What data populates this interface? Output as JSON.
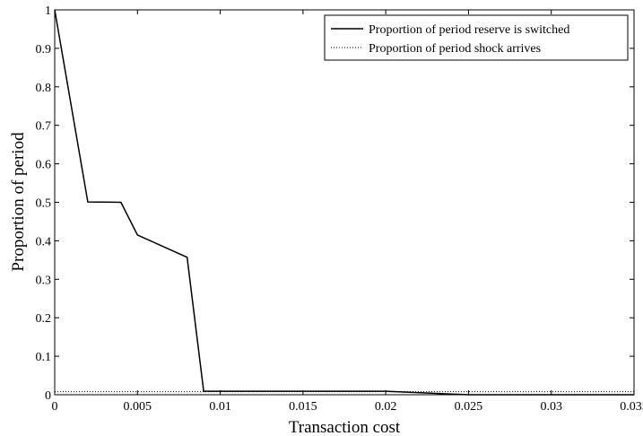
{
  "chart_data": {
    "type": "line",
    "title": "",
    "xlabel": "Transaction cost",
    "ylabel": "Proportion of period",
    "xlim": [
      0,
      0.035
    ],
    "ylim": [
      0,
      1
    ],
    "xticks": [
      0,
      0.005,
      0.01,
      0.015,
      0.02,
      0.025,
      0.03,
      0.035
    ],
    "xtick_labels": [
      "0",
      "0.005",
      "0.01",
      "0.015",
      "0.02",
      "0.025",
      "0.03",
      "0.035"
    ],
    "yticks": [
      0,
      0.1,
      0.2,
      0.3,
      0.4,
      0.5,
      0.6,
      0.7,
      0.8,
      0.9,
      1
    ],
    "ytick_labels": [
      "0",
      "0.1",
      "0.2",
      "0.3",
      "0.4",
      "0.5",
      "0.6",
      "0.7",
      "0.8",
      "0.9",
      "1"
    ],
    "grid": false,
    "legend_position": "top-right",
    "series": [
      {
        "name": "Proportion of period reserve is switched",
        "style": "solid",
        "color": "#000000",
        "x": [
          0,
          0.002,
          0.004,
          0.005,
          0.008,
          0.009,
          0.01,
          0.015,
          0.02,
          0.025,
          0.03,
          0.035
        ],
        "y": [
          1,
          0.501,
          0.5,
          0.415,
          0.357,
          0.009,
          0.009,
          0.009,
          0.009,
          0.0,
          0.0,
          0.0
        ]
      },
      {
        "name": "Proportion of period shock arrives",
        "style": "dotted",
        "color": "#000000",
        "x": [
          0,
          0.035
        ],
        "y": [
          0.008,
          0.008
        ]
      }
    ]
  }
}
